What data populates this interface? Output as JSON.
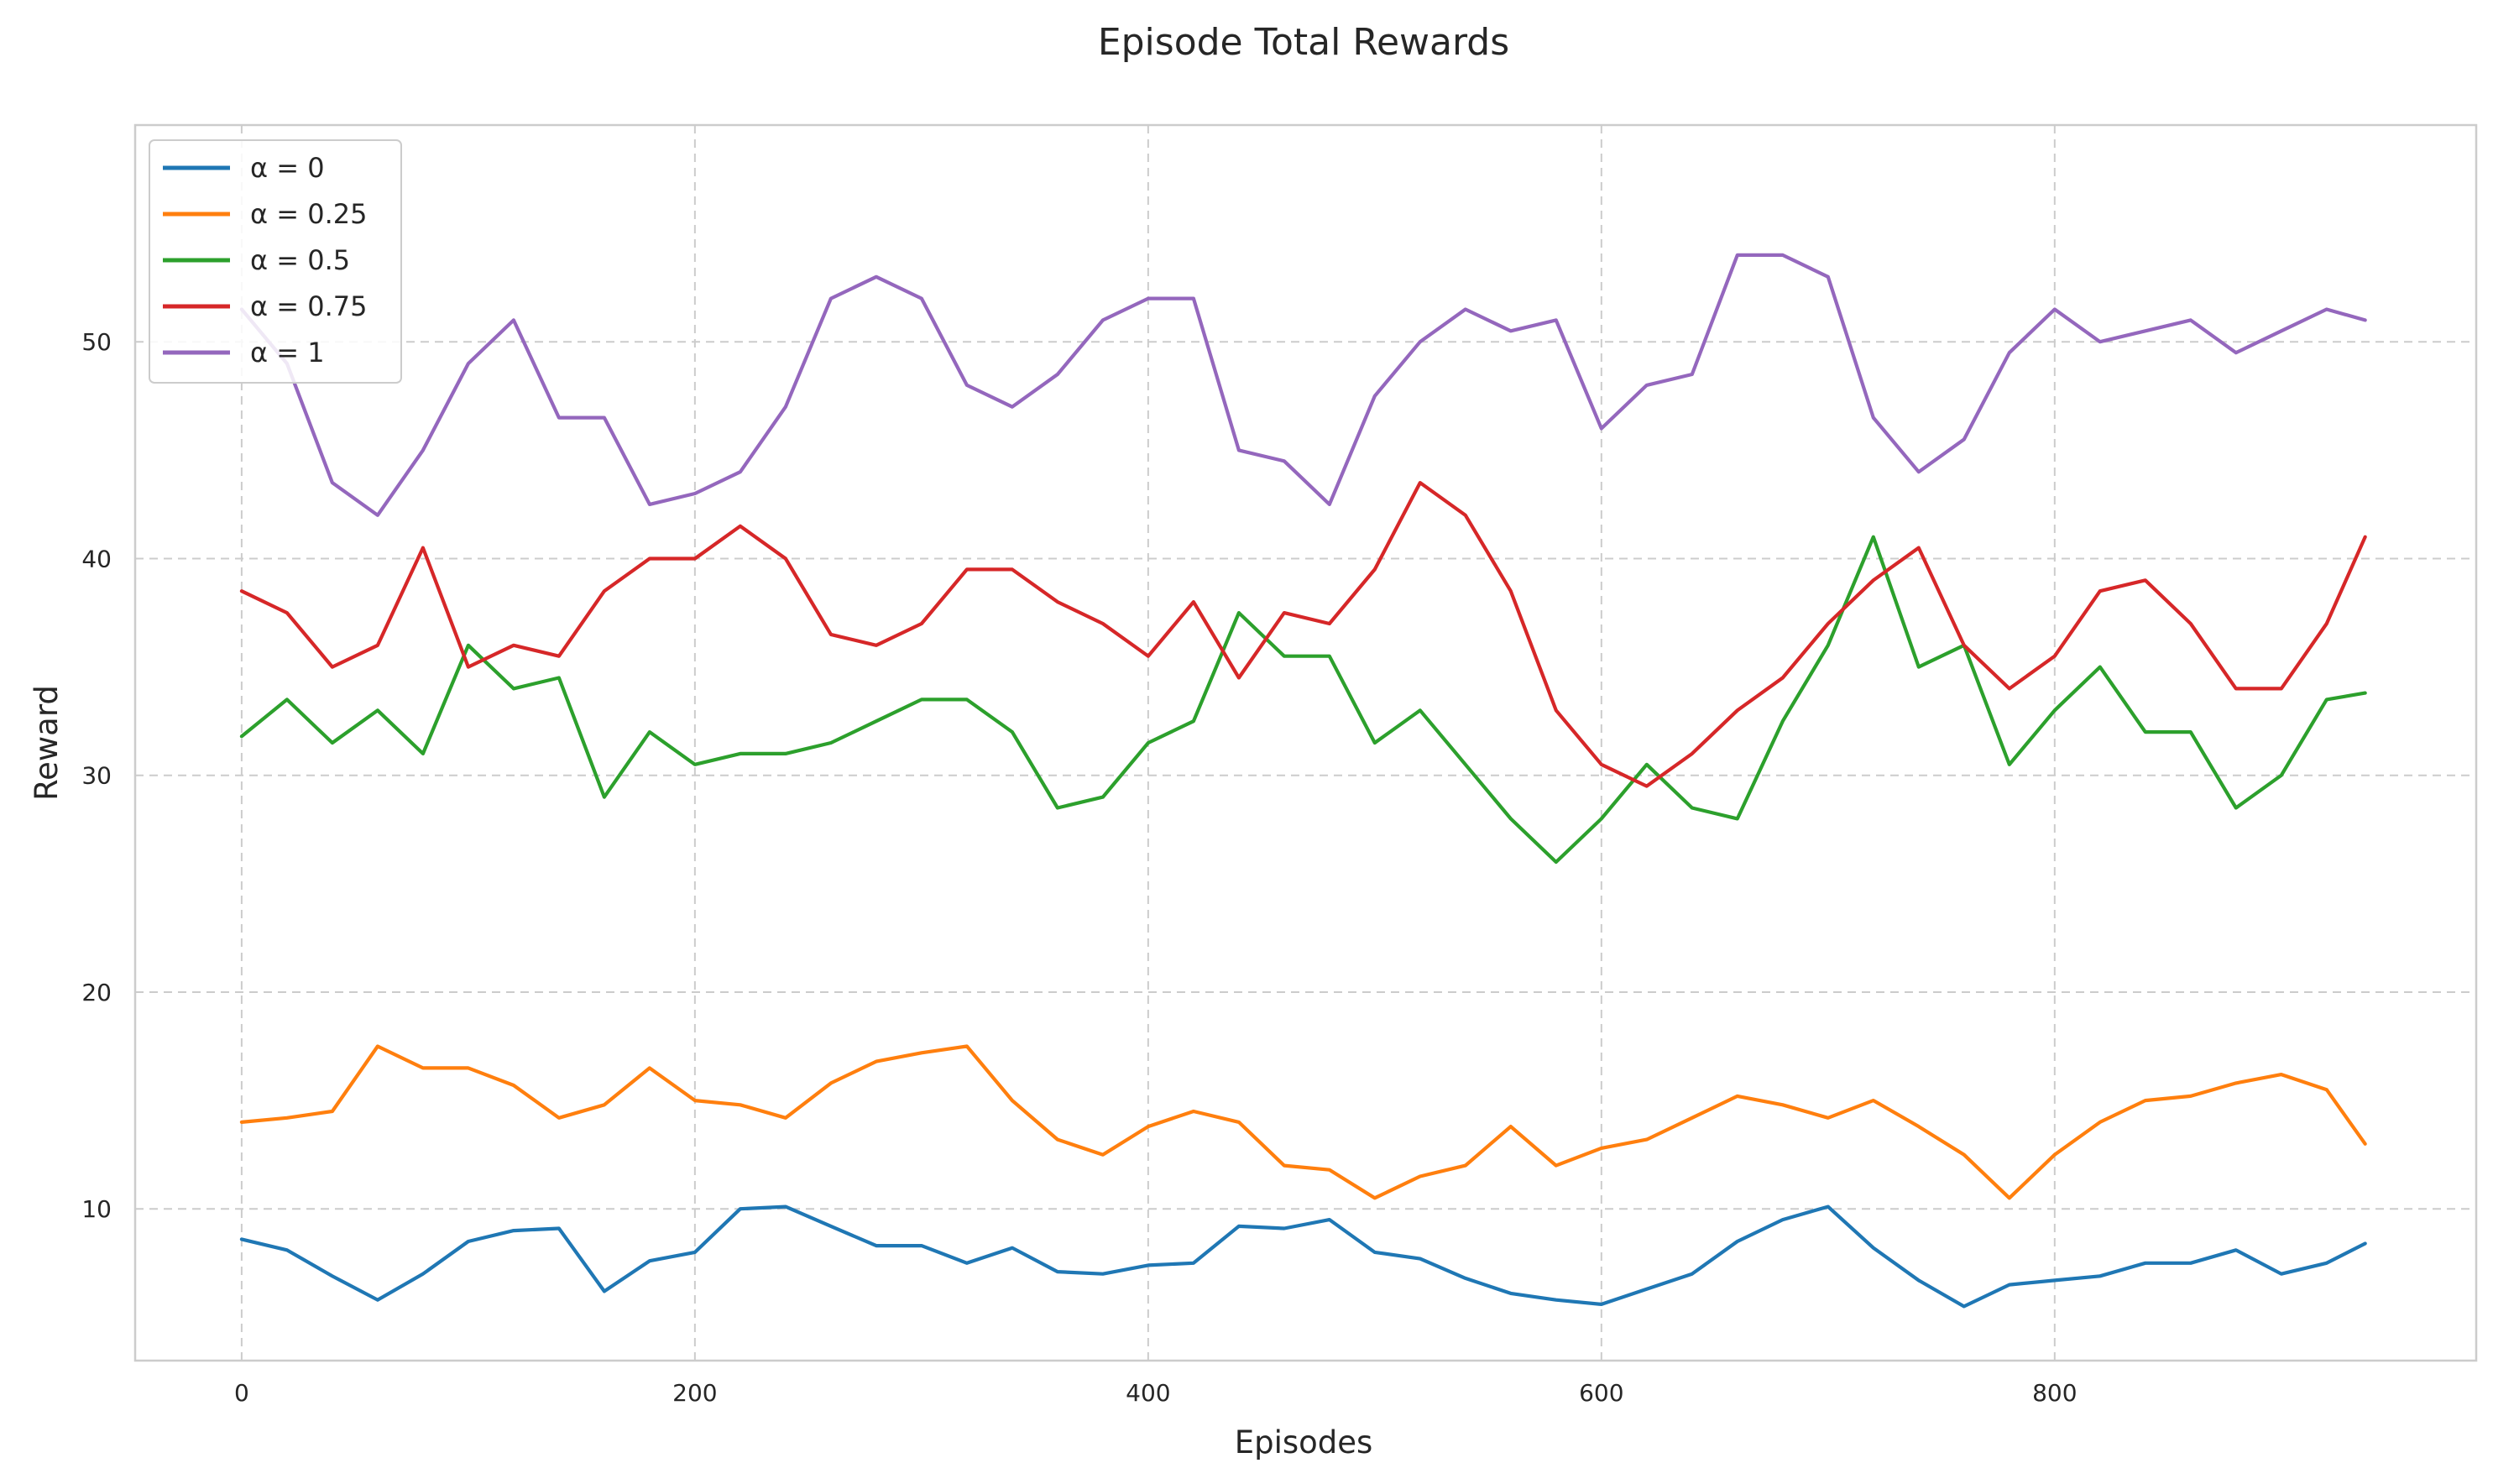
{
  "chart_data": {
    "type": "line",
    "title": "Episode Total Rewards",
    "xlabel": "Episodes",
    "ylabel": "Reward",
    "xlim": [
      -47,
      986
    ],
    "ylim": [
      3,
      60
    ],
    "xticks": [
      0,
      200,
      400,
      600,
      800
    ],
    "yticks": [
      10,
      20,
      30,
      40,
      50
    ],
    "grid": true,
    "legend_position": "top-left",
    "colors": {
      "alpha_0": "#1f77b4",
      "alpha_025": "#ff7f0e",
      "alpha_05": "#2ca02c",
      "alpha_075": "#d62728",
      "alpha_1": "#9467bd",
      "grid": "#cccccc",
      "frame": "#cccccc",
      "text": "#262626"
    },
    "series": [
      {
        "name": "α = 0",
        "color": "#1f77b4",
        "x": [
          0,
          20,
          40,
          60,
          80,
          100,
          120,
          140,
          160,
          180,
          200,
          220,
          240,
          260,
          280,
          300,
          320,
          340,
          360,
          380,
          400,
          420,
          440,
          460,
          480,
          500,
          520,
          540,
          560,
          580,
          600,
          620,
          640,
          660,
          680,
          700,
          720,
          740,
          760,
          780,
          800,
          820,
          840,
          860,
          880,
          900,
          920,
          937
        ],
        "y": [
          8.6,
          8.1,
          6.9,
          5.8,
          7.0,
          8.5,
          9.0,
          9.1,
          6.2,
          7.6,
          8.0,
          10.0,
          10.1,
          9.2,
          8.3,
          8.3,
          7.5,
          8.2,
          7.1,
          7.0,
          7.4,
          7.5,
          9.2,
          9.1,
          9.5,
          8.0,
          7.7,
          6.8,
          6.1,
          5.8,
          5.6,
          6.3,
          7.0,
          8.5,
          9.5,
          10.1,
          8.2,
          6.7,
          5.5,
          6.5,
          6.7,
          6.9,
          7.5,
          7.5,
          8.1,
          7.0,
          7.5,
          8.4
        ]
      },
      {
        "name": "α = 0.25",
        "color": "#ff7f0e",
        "x": [
          0,
          20,
          40,
          60,
          80,
          100,
          120,
          140,
          160,
          180,
          200,
          220,
          240,
          260,
          280,
          300,
          320,
          340,
          360,
          380,
          400,
          420,
          440,
          460,
          480,
          500,
          520,
          540,
          560,
          580,
          600,
          620,
          640,
          660,
          680,
          700,
          720,
          740,
          760,
          780,
          800,
          820,
          840,
          860,
          880,
          900,
          920,
          937
        ],
        "y": [
          14.0,
          14.2,
          14.5,
          17.5,
          16.5,
          16.5,
          15.7,
          14.2,
          14.8,
          16.5,
          15.0,
          14.8,
          14.2,
          15.8,
          16.8,
          17.2,
          17.5,
          15.0,
          13.2,
          12.5,
          13.8,
          14.5,
          14.0,
          12.0,
          11.8,
          10.5,
          11.5,
          12.0,
          13.8,
          12.0,
          12.8,
          13.2,
          14.2,
          15.2,
          14.8,
          14.2,
          15.0,
          13.8,
          12.5,
          10.5,
          12.5,
          14.0,
          15.0,
          15.2,
          15.8,
          16.2,
          15.5,
          13.0
        ]
      },
      {
        "name": "α = 0.5",
        "color": "#2ca02c",
        "x": [
          0,
          20,
          40,
          60,
          80,
          100,
          120,
          140,
          160,
          180,
          200,
          220,
          240,
          260,
          280,
          300,
          320,
          340,
          360,
          380,
          400,
          420,
          440,
          460,
          480,
          500,
          520,
          540,
          560,
          580,
          600,
          620,
          640,
          660,
          680,
          700,
          720,
          740,
          760,
          780,
          800,
          820,
          840,
          860,
          880,
          900,
          920,
          937
        ],
        "y": [
          31.8,
          33.5,
          31.5,
          33.0,
          31.0,
          36.0,
          34.0,
          34.5,
          29.0,
          32.0,
          30.5,
          31.0,
          31.0,
          31.5,
          32.5,
          33.5,
          33.5,
          32.0,
          28.5,
          29.0,
          31.5,
          32.5,
          37.5,
          35.5,
          35.5,
          31.5,
          33.0,
          30.5,
          28.0,
          26.0,
          28.0,
          30.5,
          28.5,
          28.0,
          32.5,
          36.0,
          41.0,
          35.0,
          36.0,
          30.5,
          33.0,
          35.0,
          32.0,
          32.0,
          28.5,
          30.0,
          33.5,
          33.8
        ]
      },
      {
        "name": "α = 0.75",
        "color": "#d62728",
        "x": [
          0,
          20,
          40,
          60,
          80,
          100,
          120,
          140,
          160,
          180,
          200,
          220,
          240,
          260,
          280,
          300,
          320,
          340,
          360,
          380,
          400,
          420,
          440,
          460,
          480,
          500,
          520,
          540,
          560,
          580,
          600,
          620,
          640,
          660,
          680,
          700,
          720,
          740,
          760,
          780,
          800,
          820,
          840,
          860,
          880,
          900,
          920,
          937
        ],
        "y": [
          38.5,
          37.5,
          35.0,
          36.0,
          40.5,
          35.0,
          36.0,
          35.5,
          38.5,
          40.0,
          40.0,
          41.5,
          40.0,
          36.5,
          36.0,
          37.0,
          39.5,
          39.5,
          38.0,
          37.0,
          35.5,
          38.0,
          34.5,
          37.5,
          37.0,
          39.5,
          43.5,
          42.0,
          38.5,
          33.0,
          30.5,
          29.5,
          31.0,
          33.0,
          34.5,
          37.0,
          39.0,
          40.5,
          36.0,
          34.0,
          35.5,
          38.5,
          39.0,
          37.0,
          34.0,
          34.0,
          37.0,
          41.0
        ]
      },
      {
        "name": "α = 1",
        "color": "#9467bd",
        "x": [
          0,
          20,
          40,
          60,
          80,
          100,
          120,
          140,
          160,
          180,
          200,
          220,
          240,
          260,
          280,
          300,
          320,
          340,
          360,
          380,
          400,
          420,
          440,
          460,
          480,
          500,
          520,
          540,
          560,
          580,
          600,
          620,
          640,
          660,
          680,
          700,
          720,
          740,
          760,
          780,
          800,
          820,
          840,
          860,
          880,
          900,
          920,
          937
        ],
        "y": [
          51.5,
          49.0,
          43.5,
          42.0,
          45.0,
          49.0,
          51.0,
          46.5,
          46.5,
          42.5,
          43.0,
          44.0,
          47.0,
          52.0,
          53.0,
          52.0,
          48.0,
          47.0,
          48.5,
          51.0,
          52.0,
          52.0,
          45.0,
          44.5,
          42.5,
          47.5,
          50.0,
          51.5,
          50.5,
          51.0,
          46.0,
          48.0,
          48.5,
          54.0,
          54.0,
          53.0,
          46.5,
          44.0,
          45.5,
          49.5,
          51.5,
          50.0,
          50.5,
          51.0,
          49.5,
          50.5,
          51.5,
          51.0
        ]
      }
    ]
  }
}
